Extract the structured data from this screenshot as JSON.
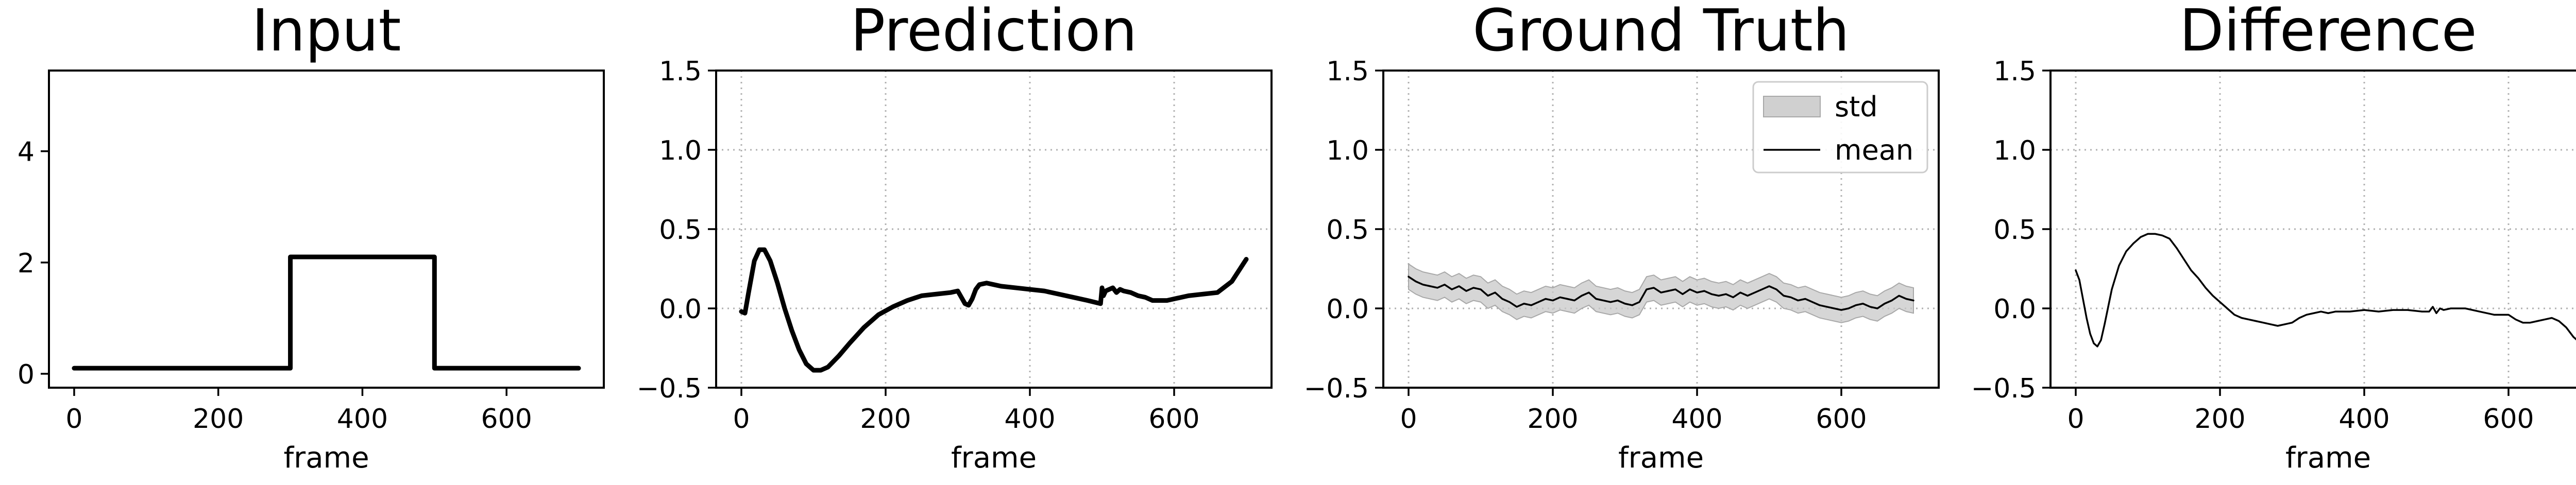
{
  "chart_data": [
    {
      "type": "line",
      "title": "Input",
      "xlabel": "frame",
      "ylabel": "",
      "xlim": [
        -35,
        735
      ],
      "ylim": [
        -0.25,
        5.45
      ],
      "xticks": [
        0,
        200,
        400,
        600
      ],
      "yticks": [
        0,
        2,
        4
      ],
      "ytick_labels": [
        "0",
        "2",
        "4"
      ],
      "grid": false,
      "series": [
        {
          "style": "thick",
          "x": [
            0,
            300,
            300,
            500,
            500,
            700
          ],
          "y": [
            0.1,
            0.1,
            2.1,
            2.1,
            0.1,
            0.1
          ]
        }
      ]
    },
    {
      "type": "line",
      "title": "Prediction",
      "xlabel": "frame",
      "ylabel": "",
      "xlim": [
        -35,
        735
      ],
      "ylim": [
        -0.5,
        1.5
      ],
      "xticks": [
        0,
        200,
        400,
        600
      ],
      "yticks": [
        -0.5,
        0,
        0.5,
        1.0,
        1.5
      ],
      "ytick_labels": [
        "−0.5",
        "0.0",
        "0.5",
        "1.0",
        "1.5"
      ],
      "grid": true,
      "series": [
        {
          "style": "thick",
          "x": [
            0,
            5,
            10,
            18,
            25,
            32,
            40,
            50,
            60,
            70,
            80,
            90,
            100,
            110,
            120,
            135,
            150,
            170,
            190,
            210,
            230,
            250,
            270,
            290,
            300,
            305,
            310,
            315,
            320,
            325,
            330,
            340,
            350,
            360,
            380,
            400,
            420,
            440,
            460,
            480,
            498,
            500,
            502,
            505,
            510,
            515,
            520,
            525,
            530,
            540,
            550,
            560,
            570,
            580,
            590,
            600,
            620,
            640,
            660,
            680,
            700
          ],
          "y": [
            -0.02,
            -0.03,
            0.1,
            0.3,
            0.37,
            0.37,
            0.3,
            0.16,
            0.0,
            -0.14,
            -0.26,
            -0.35,
            -0.39,
            -0.39,
            -0.37,
            -0.3,
            -0.22,
            -0.12,
            -0.04,
            0.01,
            0.05,
            0.08,
            0.09,
            0.1,
            0.11,
            0.07,
            0.03,
            0.02,
            0.06,
            0.12,
            0.15,
            0.16,
            0.15,
            0.14,
            0.13,
            0.12,
            0.11,
            0.09,
            0.07,
            0.05,
            0.03,
            0.13,
            0.08,
            0.11,
            0.12,
            0.13,
            0.1,
            0.12,
            0.11,
            0.1,
            0.08,
            0.07,
            0.05,
            0.05,
            0.05,
            0.06,
            0.08,
            0.09,
            0.1,
            0.17,
            0.31
          ]
        }
      ]
    },
    {
      "type": "area",
      "title": "Ground Truth",
      "xlabel": "frame",
      "ylabel": "",
      "xlim": [
        -35,
        735
      ],
      "ylim": [
        -0.5,
        1.5
      ],
      "xticks": [
        0,
        200,
        400,
        600
      ],
      "yticks": [
        -0.5,
        0,
        0.5,
        1.0,
        1.5
      ],
      "ytick_labels": [
        "−0.5",
        "0.0",
        "0.5",
        "1.0",
        "1.5"
      ],
      "grid": true,
      "legend": {
        "position": "top-right",
        "entries": [
          {
            "label": "std",
            "kind": "band"
          },
          {
            "label": "mean",
            "kind": "line"
          }
        ]
      },
      "series": [
        {
          "name": "mean",
          "style": "thin",
          "band_halfwidth": 0.08,
          "x": [
            0,
            10,
            20,
            30,
            40,
            50,
            60,
            70,
            80,
            90,
            100,
            110,
            120,
            130,
            140,
            150,
            160,
            170,
            180,
            190,
            200,
            210,
            220,
            230,
            240,
            250,
            260,
            270,
            280,
            290,
            300,
            310,
            320,
            330,
            340,
            350,
            360,
            370,
            380,
            390,
            400,
            410,
            420,
            430,
            440,
            450,
            460,
            470,
            480,
            490,
            500,
            510,
            520,
            530,
            540,
            550,
            560,
            570,
            580,
            590,
            600,
            610,
            620,
            630,
            640,
            650,
            660,
            670,
            680,
            690,
            700
          ],
          "y": [
            0.2,
            0.17,
            0.15,
            0.14,
            0.13,
            0.15,
            0.12,
            0.14,
            0.11,
            0.13,
            0.12,
            0.08,
            0.1,
            0.06,
            0.04,
            0.01,
            0.03,
            0.02,
            0.04,
            0.06,
            0.05,
            0.07,
            0.06,
            0.05,
            0.08,
            0.1,
            0.06,
            0.05,
            0.04,
            0.05,
            0.03,
            0.02,
            0.04,
            0.12,
            0.13,
            0.1,
            0.11,
            0.12,
            0.09,
            0.12,
            0.1,
            0.11,
            0.09,
            0.08,
            0.09,
            0.07,
            0.1,
            0.08,
            0.1,
            0.12,
            0.14,
            0.12,
            0.08,
            0.07,
            0.05,
            0.06,
            0.04,
            0.02,
            0.01,
            0.0,
            -0.01,
            0.0,
            0.02,
            0.03,
            0.01,
            0.0,
            0.03,
            0.05,
            0.08,
            0.06,
            0.05
          ]
        }
      ]
    },
    {
      "type": "line",
      "title": "Difference",
      "xlabel": "frame",
      "ylabel": "",
      "xlim": [
        -35,
        735
      ],
      "ylim": [
        -0.5,
        1.5
      ],
      "xticks": [
        0,
        200,
        400,
        600
      ],
      "yticks": [
        -0.5,
        0,
        0.5,
        1.0,
        1.5
      ],
      "ytick_labels": [
        "−0.5",
        "0.0",
        "0.5",
        "1.0",
        "1.5"
      ],
      "grid": true,
      "series": [
        {
          "style": "thin",
          "x": [
            0,
            5,
            10,
            15,
            20,
            25,
            30,
            35,
            40,
            50,
            60,
            70,
            80,
            90,
            100,
            110,
            120,
            130,
            140,
            150,
            160,
            170,
            180,
            190,
            200,
            210,
            220,
            230,
            240,
            250,
            260,
            270,
            280,
            290,
            300,
            310,
            320,
            330,
            340,
            350,
            360,
            380,
            400,
            420,
            440,
            460,
            480,
            490,
            495,
            500,
            505,
            510,
            520,
            540,
            560,
            580,
            600,
            610,
            620,
            630,
            640,
            650,
            660,
            670,
            680,
            690,
            695,
            700
          ],
          "y": [
            0.24,
            0.18,
            0.06,
            -0.06,
            -0.16,
            -0.22,
            -0.24,
            -0.2,
            -0.1,
            0.12,
            0.27,
            0.36,
            0.41,
            0.45,
            0.47,
            0.47,
            0.46,
            0.44,
            0.38,
            0.31,
            0.24,
            0.19,
            0.13,
            0.08,
            0.04,
            0.0,
            -0.04,
            -0.06,
            -0.07,
            -0.08,
            -0.09,
            -0.1,
            -0.11,
            -0.1,
            -0.09,
            -0.06,
            -0.04,
            -0.03,
            -0.02,
            -0.03,
            -0.02,
            -0.02,
            -0.01,
            -0.02,
            -0.01,
            -0.01,
            -0.02,
            -0.02,
            0.01,
            -0.03,
            0.0,
            -0.01,
            0.0,
            0.0,
            -0.02,
            -0.04,
            -0.04,
            -0.07,
            -0.09,
            -0.09,
            -0.08,
            -0.07,
            -0.06,
            -0.08,
            -0.12,
            -0.18,
            -0.2,
            -0.24
          ]
        }
      ]
    }
  ]
}
